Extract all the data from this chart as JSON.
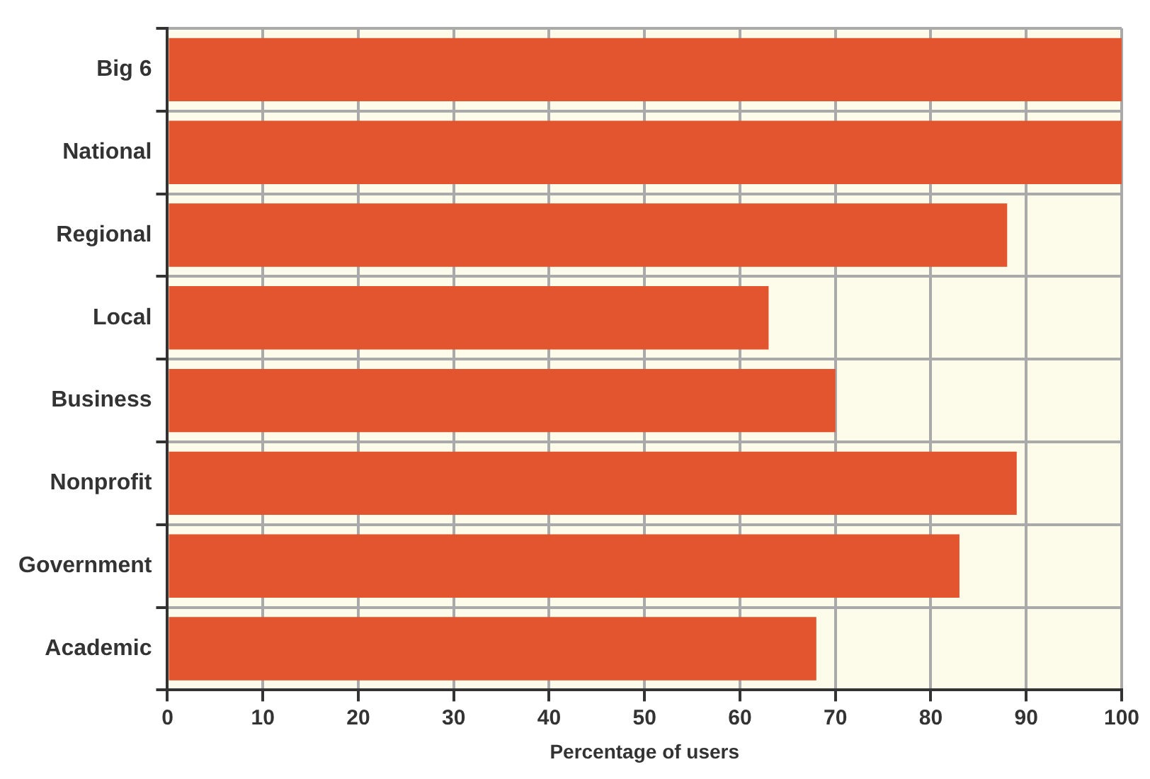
{
  "chart_data": {
    "type": "bar",
    "orientation": "horizontal",
    "xlabel": "Percentage of users",
    "categories": [
      "Big 6",
      "National",
      "Regional",
      "Local",
      "Business",
      "Nonprofit",
      "Government",
      "Academic"
    ],
    "values": [
      100,
      100,
      88,
      63,
      70,
      89,
      83,
      68
    ],
    "color": "#e2552e",
    "xlim": [
      0,
      100
    ],
    "xticks": [
      0,
      10,
      20,
      30,
      40,
      50,
      60,
      70,
      80,
      90,
      100
    ],
    "grid": true
  }
}
